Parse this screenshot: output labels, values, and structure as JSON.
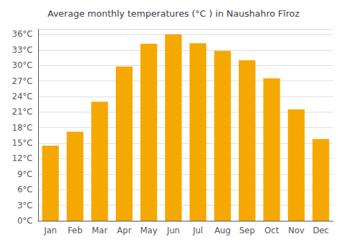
{
  "chart_data": {
    "type": "bar",
    "title": "Average monthly temperatures (°C ) in Naushahro Fīroz",
    "categories": [
      "Jan",
      "Feb",
      "Mar",
      "Apr",
      "May",
      "Jun",
      "Jul",
      "Aug",
      "Sep",
      "Oct",
      "Nov",
      "Dec"
    ],
    "values": [
      14.5,
      17.2,
      23.0,
      29.8,
      34.2,
      36.0,
      34.3,
      32.8,
      31.0,
      27.5,
      21.5,
      15.8
    ],
    "color": "#F5A800",
    "ylim": [
      0,
      37
    ],
    "yticks": [
      {
        "value": 0,
        "label": "0°C"
      },
      {
        "value": 3,
        "label": "3°C"
      },
      {
        "value": 6,
        "label": "6°C"
      },
      {
        "value": 9,
        "label": "9°C"
      },
      {
        "value": 12,
        "label": "12°C"
      },
      {
        "value": 15,
        "label": "15°C"
      },
      {
        "value": 18,
        "label": "18°C"
      },
      {
        "value": 21,
        "label": "21°C"
      },
      {
        "value": 24,
        "label": "24°C"
      },
      {
        "value": 27,
        "label": "27°C"
      },
      {
        "value": 30,
        "label": "30°C"
      },
      {
        "value": 33,
        "label": "33°C"
      },
      {
        "value": 36,
        "label": "36°C"
      }
    ],
    "grid": true
  }
}
